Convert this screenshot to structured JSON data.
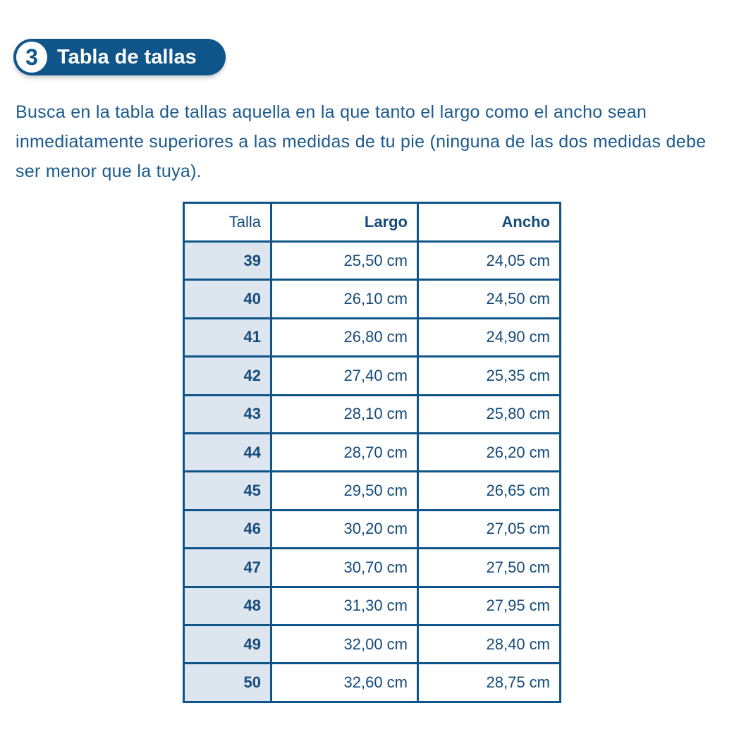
{
  "section": {
    "number": "3",
    "title": "Tabla de tallas"
  },
  "intro": "Busca en la tabla de tallas aquella en la que tanto el largo como el ancho sean inmediatamente superiores a las medidas de tu pie (ninguna de las dos medidas debe ser menor que la tuya).",
  "table": {
    "headers": [
      "Talla",
      "Largo",
      "Ancho"
    ],
    "rows": [
      [
        "39",
        "25,50 cm",
        "24,05 cm"
      ],
      [
        "40",
        "26,10 cm",
        "24,50 cm"
      ],
      [
        "41",
        "26,80 cm",
        "24,90 cm"
      ],
      [
        "42",
        "27,40 cm",
        "25,35 cm"
      ],
      [
        "43",
        "28,10 cm",
        "25,80 cm"
      ],
      [
        "44",
        "28,70 cm",
        "26,20 cm"
      ],
      [
        "45",
        "29,50 cm",
        "26,65 cm"
      ],
      [
        "46",
        "30,20 cm",
        "27,05 cm"
      ],
      [
        "47",
        "30,70 cm",
        "27,50 cm"
      ],
      [
        "48",
        "31,30 cm",
        "27,95 cm"
      ],
      [
        "49",
        "32,00 cm",
        "28,40 cm"
      ],
      [
        "50",
        "32,60 cm",
        "28,75 cm"
      ]
    ]
  },
  "colors": {
    "accent": "#0f5589",
    "first_col_bg": "#dde6ef",
    "text": "#1b5a8e"
  }
}
